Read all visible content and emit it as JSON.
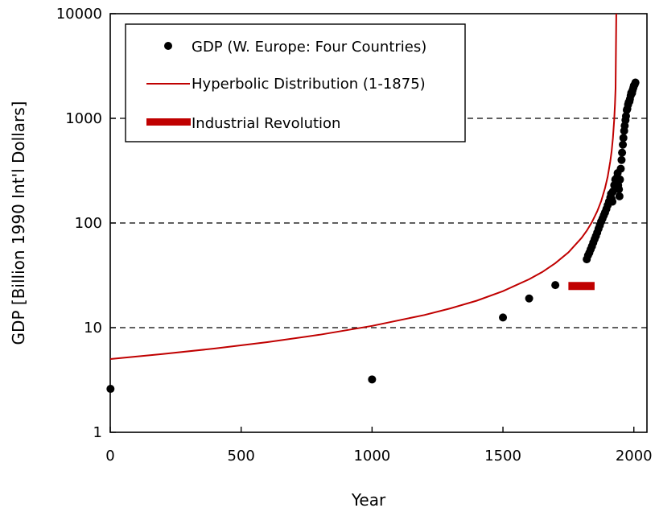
{
  "chart_data": {
    "type": "scatter",
    "xlabel": "Year",
    "ylabel": "GDP [Billion 1990 Int'l Dollars]",
    "xlim": [
      0,
      2050
    ],
    "ylim": [
      1,
      10000
    ],
    "yscale": "log",
    "x_ticks": [
      "0",
      "500",
      "1000",
      "1500",
      "2000"
    ],
    "x_tick_values": [
      0,
      500,
      1000,
      1500,
      2000
    ],
    "y_ticks": [
      "1",
      "10",
      "100",
      "1000",
      "10000"
    ],
    "y_tick_values": [
      1,
      10,
      100,
      1000,
      10000
    ],
    "gridlines": "dashed horizontal at 10, 100, 1000",
    "legend_position": "top-left",
    "colors": {
      "points": "#000000",
      "hyperbolic": "#c00000",
      "industrial": "#c00000"
    },
    "series": [
      {
        "name": "GDP (W. Europe: Four Countries)",
        "kind": "points",
        "x": [
          1,
          1000,
          1500,
          1600,
          1700,
          1820,
          1825,
          1830,
          1835,
          1840,
          1845,
          1850,
          1855,
          1860,
          1865,
          1870,
          1875,
          1880,
          1885,
          1890,
          1895,
          1900,
          1905,
          1910,
          1913,
          1915,
          1918,
          1920,
          1925,
          1929,
          1932,
          1935,
          1938,
          1940,
          1943,
          1945,
          1947,
          1950,
          1953,
          1955,
          1958,
          1960,
          1963,
          1965,
          1968,
          1970,
          1973,
          1975,
          1978,
          1980,
          1983,
          1985,
          1988,
          1990,
          1993,
          1995,
          1998,
          2000,
          2003,
          2006
        ],
        "y": [
          2.6,
          3.2,
          12.5,
          19,
          25.5,
          45,
          49,
          52,
          56,
          60,
          65,
          70,
          75,
          81,
          88,
          95,
          103,
          110,
          118,
          126,
          136,
          148,
          160,
          175,
          190,
          170,
          160,
          200,
          230,
          260,
          240,
          270,
          300,
          230,
          210,
          180,
          260,
          330,
          400,
          470,
          560,
          650,
          760,
          850,
          960,
          1050,
          1200,
          1230,
          1350,
          1420,
          1450,
          1530,
          1650,
          1750,
          1740,
          1850,
          1950,
          2050,
          2100,
          2200
        ]
      },
      {
        "name": "Hyperbolic Distribution (1-1875)",
        "kind": "line",
        "model": "GDP = 9700 / (1935 - year)",
        "x": [
          0,
          200,
          400,
          600,
          800,
          1000,
          1200,
          1300,
          1400,
          1500,
          1600,
          1650,
          1700,
          1750,
          1800,
          1820,
          1840,
          1860,
          1875,
          1890,
          1900,
          1910,
          1915,
          1920,
          1925,
          1928,
          1930
        ],
        "y": [
          5.01,
          5.59,
          6.32,
          7.27,
          8.55,
          10.4,
          13.2,
          15.3,
          18.1,
          22.3,
          29.0,
          34.0,
          41.3,
          52.4,
          71.9,
          84.3,
          102.1,
          129.3,
          161.7,
          215.6,
          277.1,
          388.0,
          485.0,
          646.7,
          970.0,
          1385.7,
          1940.0
        ]
      },
      {
        "name": "Industrial Revolution",
        "kind": "bar",
        "x_start": 1750,
        "x_end": 1850,
        "y": 25
      }
    ]
  }
}
